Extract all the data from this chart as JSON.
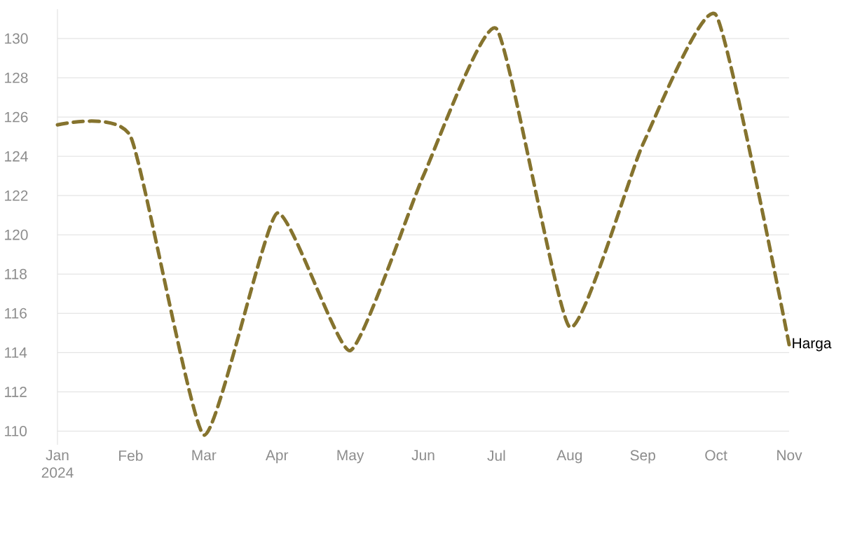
{
  "chart_data": {
    "type": "line",
    "x": [
      "2024-01",
      "2024-02",
      "2024-03",
      "2024-04",
      "2024-05",
      "2024-06",
      "2024-07",
      "2024-08",
      "2024-09",
      "2024-10",
      "2024-11"
    ],
    "series": [
      {
        "name": "Harga",
        "color": "#85732e",
        "values": [
          125.6,
          125.0,
          109.8,
          121.1,
          114.1,
          123.0,
          130.5,
          115.3,
          124.6,
          131.2,
          114.4
        ]
      }
    ],
    "xlim": [
      "2024-01",
      "2024-11"
    ],
    "xticks": [
      {
        "value": "2024-01",
        "label": "Jan 2024"
      },
      {
        "value": "2024-02",
        "label": "Feb"
      },
      {
        "value": "2024-03",
        "label": "Mar"
      },
      {
        "value": "2024-04",
        "label": "Apr"
      },
      {
        "value": "2024-05",
        "label": "May"
      },
      {
        "value": "2024-06",
        "label": "Jun"
      },
      {
        "value": "2024-07",
        "label": "Jul"
      },
      {
        "value": "2024-08",
        "label": "Aug"
      },
      {
        "value": "2024-09",
        "label": "Sep"
      },
      {
        "value": "2024-10",
        "label": "Oct"
      },
      {
        "value": "2024-11",
        "label": "Nov"
      }
    ],
    "ylim": [
      109.3,
      131.5
    ],
    "yticks": [
      110,
      112,
      114,
      116,
      118,
      120,
      122,
      124,
      126,
      128,
      130
    ],
    "grid": "y",
    "legend": false,
    "marker": "none",
    "line_style": "dashed"
  }
}
